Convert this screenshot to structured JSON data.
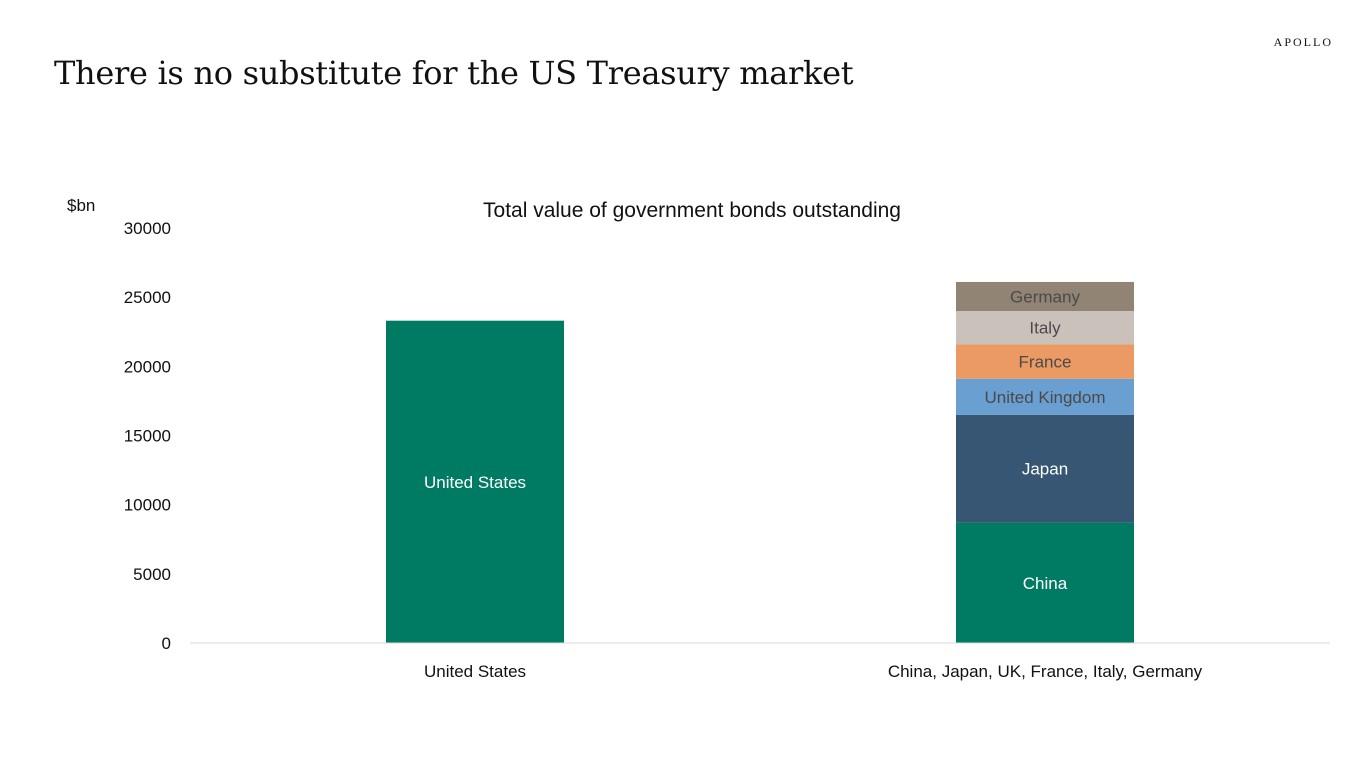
{
  "page": {
    "brand": "APOLLO",
    "headline": "There is no substitute for the US Treasury market"
  },
  "chart_data": {
    "type": "bar",
    "stacked": true,
    "title": "Total value of government bonds outstanding",
    "ylabel": "$bn",
    "xlabel": "",
    "ylim": [
      0,
      30000
    ],
    "yticks": [
      0,
      5000,
      10000,
      15000,
      20000,
      25000,
      30000
    ],
    "categories": [
      "United States",
      "China, Japan, UK, France, Italy, Germany"
    ],
    "series": [
      {
        "name": "United States",
        "values": [
          23300,
          0
        ],
        "color": "#007B63",
        "label_color": "#FFFFFF"
      },
      {
        "name": "China",
        "values": [
          0,
          8700
        ],
        "color": "#007B63",
        "label_color": "#FFFFFF"
      },
      {
        "name": "Japan",
        "values": [
          0,
          7800
        ],
        "color": "#365673",
        "label_color": "#FFFFFF"
      },
      {
        "name": "United Kingdom",
        "values": [
          0,
          2600
        ],
        "color": "#6A9FD1",
        "label_color": "#4A4A4A"
      },
      {
        "name": "France",
        "values": [
          0,
          2500
        ],
        "color": "#EA9A62",
        "label_color": "#4A4A4A"
      },
      {
        "name": "Italy",
        "values": [
          0,
          2400
        ],
        "color": "#C9C1BA",
        "label_color": "#4A4A4A"
      },
      {
        "name": "Germany",
        "values": [
          0,
          2100
        ],
        "color": "#918474",
        "label_color": "#4A4A4A"
      }
    ],
    "grid": false,
    "legend": "none",
    "axis_color": "#D9D9D9"
  }
}
